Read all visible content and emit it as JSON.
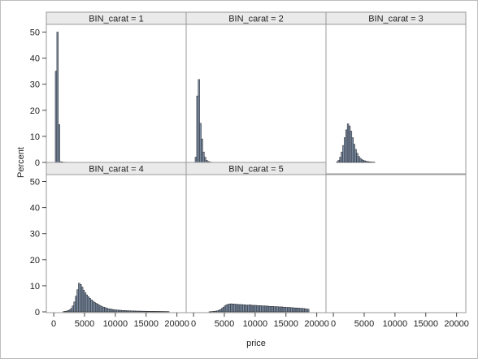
{
  "chart_data": {
    "type": "bar",
    "layout": {
      "rows": 2,
      "cols": 3
    },
    "xlabel": "price",
    "ylabel": "Percent",
    "xlim": [
      -1200,
      21500
    ],
    "ylim": [
      0,
      53
    ],
    "xticks": [
      0,
      5000,
      10000,
      15000,
      20000
    ],
    "yticks": [
      0,
      10,
      20,
      30,
      40,
      50
    ],
    "bin_width": 250,
    "colors": {
      "bar_fill": "#7d8fa8",
      "bar_edge": "#222222",
      "strip_bg": "#eaeaea",
      "panel_border": "#9a9a9a"
    },
    "panels": [
      {
        "title": "BIN_carat = 1",
        "bin_starts": [
          250,
          500,
          750,
          1000,
          1250,
          1500,
          1750
        ],
        "values": [
          35.0,
          50.0,
          14.5,
          0.3,
          0.2,
          0.1,
          0.1
        ]
      },
      {
        "title": "BIN_carat = 2",
        "bin_starts": [
          250,
          500,
          750,
          1000,
          1250,
          1500,
          1750,
          2000,
          2250,
          2500,
          2750
        ],
        "values": [
          2.0,
          25.5,
          31.8,
          15.0,
          9.0,
          4.0,
          2.0,
          0.8,
          0.4,
          0.2,
          0.1
        ]
      },
      {
        "title": "BIN_carat = 3",
        "bin_starts": [
          500,
          750,
          1000,
          1250,
          1500,
          1750,
          2000,
          2250,
          2500,
          2750,
          3000,
          3250,
          3500,
          3750,
          4000,
          4250,
          4500,
          4750,
          5000,
          5250,
          5500,
          5750,
          6000,
          6250,
          6500
        ],
        "values": [
          0.2,
          0.8,
          2.0,
          4.0,
          6.5,
          9.5,
          12.5,
          14.8,
          14.0,
          12.0,
          9.5,
          7.0,
          5.0,
          3.5,
          2.3,
          1.6,
          1.1,
          0.8,
          0.6,
          0.4,
          0.3,
          0.2,
          0.15,
          0.1,
          0.1
        ]
      },
      {
        "title": "BIN_carat = 4",
        "bin_starts": [
          1500,
          1750,
          2000,
          2250,
          2500,
          2750,
          3000,
          3250,
          3500,
          3750,
          4000,
          4250,
          4500,
          4750,
          5000,
          5250,
          5500,
          5750,
          6000,
          6250,
          6500,
          6750,
          7000,
          7250,
          7500,
          7750,
          8000,
          8250,
          8500,
          8750,
          9000,
          9250,
          9500,
          9750,
          10000,
          10250,
          10500,
          10750,
          11000,
          11250,
          11500,
          11750,
          12000,
          12250,
          12500,
          12750,
          13000,
          13250,
          13500,
          13750,
          14000,
          14250,
          14500,
          14750,
          15000,
          15250,
          15500,
          15750,
          16000,
          16250,
          16500,
          16750,
          17000,
          17250,
          17500,
          17750,
          18000,
          18250,
          18500
        ],
        "values": [
          0.1,
          0.2,
          0.3,
          0.5,
          0.8,
          1.3,
          2.3,
          3.8,
          6.0,
          8.5,
          11.0,
          10.5,
          9.5,
          8.3,
          7.3,
          6.5,
          5.8,
          5.2,
          4.6,
          4.1,
          3.7,
          3.3,
          3.0,
          2.6,
          2.3,
          2.0,
          1.8,
          1.6,
          1.4,
          1.2,
          1.1,
          1.0,
          0.9,
          0.8,
          0.75,
          0.7,
          0.65,
          0.6,
          0.55,
          0.5,
          0.5,
          0.45,
          0.42,
          0.4,
          0.38,
          0.36,
          0.34,
          0.32,
          0.3,
          0.3,
          0.28,
          0.27,
          0.26,
          0.25,
          0.24,
          0.23,
          0.22,
          0.21,
          0.2,
          0.2,
          0.19,
          0.18,
          0.17,
          0.16,
          0.15,
          0.14,
          0.13,
          0.12,
          0.1
        ]
      },
      {
        "title": "BIN_carat = 5",
        "bin_starts": [
          2500,
          2750,
          3000,
          3250,
          3500,
          3750,
          4000,
          4250,
          4500,
          4750,
          5000,
          5250,
          5500,
          5750,
          6000,
          6250,
          6500,
          6750,
          7000,
          7250,
          7500,
          7750,
          8000,
          8250,
          8500,
          8750,
          9000,
          9250,
          9500,
          9750,
          10000,
          10250,
          10500,
          10750,
          11000,
          11250,
          11500,
          11750,
          12000,
          12250,
          12500,
          12750,
          13000,
          13250,
          13500,
          13750,
          14000,
          14250,
          14500,
          14750,
          15000,
          15250,
          15500,
          15750,
          16000,
          16250,
          16500,
          16750,
          17000,
          17250,
          17500,
          17750,
          18000,
          18250,
          18500
        ],
        "values": [
          0.05,
          0.1,
          0.15,
          0.2,
          0.3,
          0.4,
          0.6,
          0.9,
          1.3,
          1.8,
          2.3,
          2.7,
          2.9,
          3.0,
          3.1,
          3.0,
          3.0,
          2.9,
          2.9,
          2.8,
          2.8,
          2.8,
          2.7,
          2.7,
          2.6,
          2.6,
          2.7,
          2.6,
          2.5,
          2.5,
          2.5,
          2.4,
          2.4,
          2.4,
          2.3,
          2.3,
          2.3,
          2.2,
          2.2,
          2.1,
          2.1,
          2.1,
          2.0,
          2.0,
          2.0,
          1.9,
          1.9,
          1.9,
          1.8,
          1.8,
          1.7,
          1.7,
          1.7,
          1.6,
          1.6,
          1.5,
          1.5,
          1.5,
          1.4,
          1.4,
          1.3,
          1.3,
          1.2,
          1.1,
          1.0
        ]
      },
      {
        "title": "",
        "bin_starts": [],
        "values": []
      }
    ]
  }
}
